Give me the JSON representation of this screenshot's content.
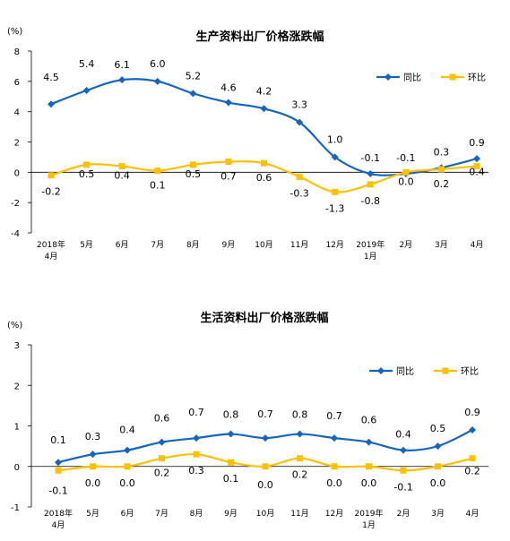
{
  "chart_data": [
    {
      "type": "line",
      "title": "生产资料出厂价格涨跌幅",
      "unit": "(%)",
      "categories": [
        [
          "2018年",
          "4月"
        ],
        [
          "5月"
        ],
        [
          "6月"
        ],
        [
          "7月"
        ],
        [
          "8月"
        ],
        [
          "9月"
        ],
        [
          "10月"
        ],
        [
          "11月"
        ],
        [
          "12月"
        ],
        [
          "2019年",
          "1月"
        ],
        [
          "2月"
        ],
        [
          "3月"
        ],
        [
          "4月"
        ]
      ],
      "ylim": [
        -4,
        8
      ],
      "yticks": [
        -4,
        -2,
        0,
        2,
        4,
        6,
        8
      ],
      "grid": false,
      "legend_position": "top-right",
      "series": [
        {
          "name": "同比",
          "color": "#1565c0",
          "marker": "diamond",
          "values": [
            4.5,
            5.4,
            6.1,
            6.0,
            5.2,
            4.6,
            4.2,
            3.3,
            1.0,
            -0.1,
            -0.1,
            0.3,
            0.9
          ],
          "labels": [
            "4.5",
            "5.4",
            "6.1",
            "6.0",
            "5.2",
            "4.6",
            "4.2",
            "3.3",
            "1.0",
            "-0.1",
            "-0.1",
            "0.3",
            "0.9"
          ]
        },
        {
          "name": "环比",
          "color": "#ffc000",
          "marker": "square",
          "values": [
            -0.2,
            0.5,
            0.4,
            0.1,
            0.5,
            0.7,
            0.6,
            -0.3,
            -1.3,
            -0.8,
            0.0,
            0.2,
            0.4
          ],
          "labels": [
            "-0.2",
            "0.5",
            "0.4",
            "0.1",
            "0.5",
            "0.7",
            "0.6",
            "-0.3",
            "-1.3",
            "-0.8",
            "0.0",
            "0.2",
            "0.4"
          ]
        }
      ]
    },
    {
      "type": "line",
      "title": "生活资料出厂价格涨跌幅",
      "unit": "(%)",
      "categories": [
        [
          "2018年",
          "4月"
        ],
        [
          "5月"
        ],
        [
          "6月"
        ],
        [
          "7月"
        ],
        [
          "8月"
        ],
        [
          "9月"
        ],
        [
          "10月"
        ],
        [
          "11月"
        ],
        [
          "12月"
        ],
        [
          "2019年",
          "1月"
        ],
        [
          "2月"
        ],
        [
          "3月"
        ],
        [
          "4月"
        ]
      ],
      "ylim": [
        -1,
        3
      ],
      "yticks": [
        -1,
        0,
        1,
        2,
        3
      ],
      "grid": false,
      "legend_position": "top-right",
      "series": [
        {
          "name": "同比",
          "color": "#1565c0",
          "marker": "diamond",
          "values": [
            0.1,
            0.3,
            0.4,
            0.6,
            0.7,
            0.8,
            0.7,
            0.8,
            0.7,
            0.6,
            0.4,
            0.5,
            0.9
          ],
          "labels": [
            "0.1",
            "0.3",
            "0.4",
            "0.6",
            "0.7",
            "0.8",
            "0.7",
            "0.8",
            "0.7",
            "0.6",
            "0.4",
            "0.5",
            "0.9"
          ]
        },
        {
          "name": "环比",
          "color": "#ffc000",
          "marker": "square",
          "values": [
            -0.1,
            0.0,
            0.0,
            0.2,
            0.3,
            0.1,
            0.0,
            0.2,
            0.0,
            0.0,
            -0.1,
            0.0,
            0.2
          ],
          "labels": [
            "-0.1",
            "0.0",
            "0.0",
            "0.2",
            "0.3",
            "0.1",
            "0.0",
            "0.2",
            "0.0",
            "0.0",
            "-0.1",
            "0.0",
            "0.2"
          ]
        }
      ]
    }
  ]
}
